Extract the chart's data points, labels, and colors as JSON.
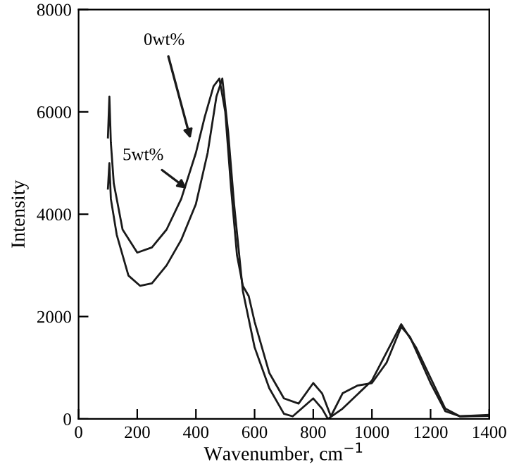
{
  "chart_data": {
    "type": "line",
    "xlabel": "Wavenumber, cm$^{−1}$",
    "ylabel": "Intensity",
    "xlim": [
      0,
      1400
    ],
    "xticks": [
      0,
      200,
      400,
      600,
      800,
      1000,
      1200,
      1400
    ],
    "ylim": [
      0,
      8000
    ],
    "yticks": [
      0,
      2000,
      4000,
      6000,
      8000
    ],
    "grid": false,
    "legend": false,
    "marker": "none",
    "line_style": "solid",
    "series": [
      {
        "color": "#1a1a1a",
        "x": [
          100,
          105,
          110,
          120,
          150,
          200,
          250,
          300,
          350,
          400,
          430,
          460,
          480,
          500,
          520,
          540,
          560,
          580,
          600,
          650,
          700,
          750,
          800,
          830,
          860,
          900,
          950,
          1000,
          1050,
          1100,
          1130,
          1200,
          1250,
          1300,
          1400
        ],
        "values": [
          5500,
          6300,
          5400,
          4600,
          3700,
          3250,
          3350,
          3700,
          4300,
          5200,
          5900,
          6500,
          6650,
          6000,
          4500,
          3200,
          2600,
          2400,
          1900,
          900,
          400,
          300,
          700,
          500,
          50,
          500,
          650,
          700,
          1100,
          1800,
          1600,
          700,
          150,
          50,
          60
        ]
      },
      {
        "color": "#1a1a1a",
        "x": [
          100,
          105,
          110,
          130,
          170,
          210,
          250,
          300,
          350,
          400,
          440,
          470,
          490,
          510,
          530,
          560,
          600,
          650,
          700,
          730,
          800,
          830,
          850,
          900,
          1000,
          1050,
          1100,
          1150,
          1200,
          1250,
          1300,
          1400
        ],
        "values": [
          4500,
          5000,
          4300,
          3600,
          2800,
          2600,
          2650,
          3000,
          3500,
          4200,
          5200,
          6300,
          6650,
          5600,
          4200,
          2500,
          1400,
          600,
          100,
          50,
          400,
          200,
          0,
          200,
          750,
          1300,
          1850,
          1400,
          800,
          200,
          50,
          80
        ]
      }
    ],
    "annotations": [
      {
        "text": "0wt%",
        "x": 385,
        "y": 5400
      },
      {
        "text": "5wt%",
        "x": 380,
        "y": 4450
      }
    ]
  }
}
